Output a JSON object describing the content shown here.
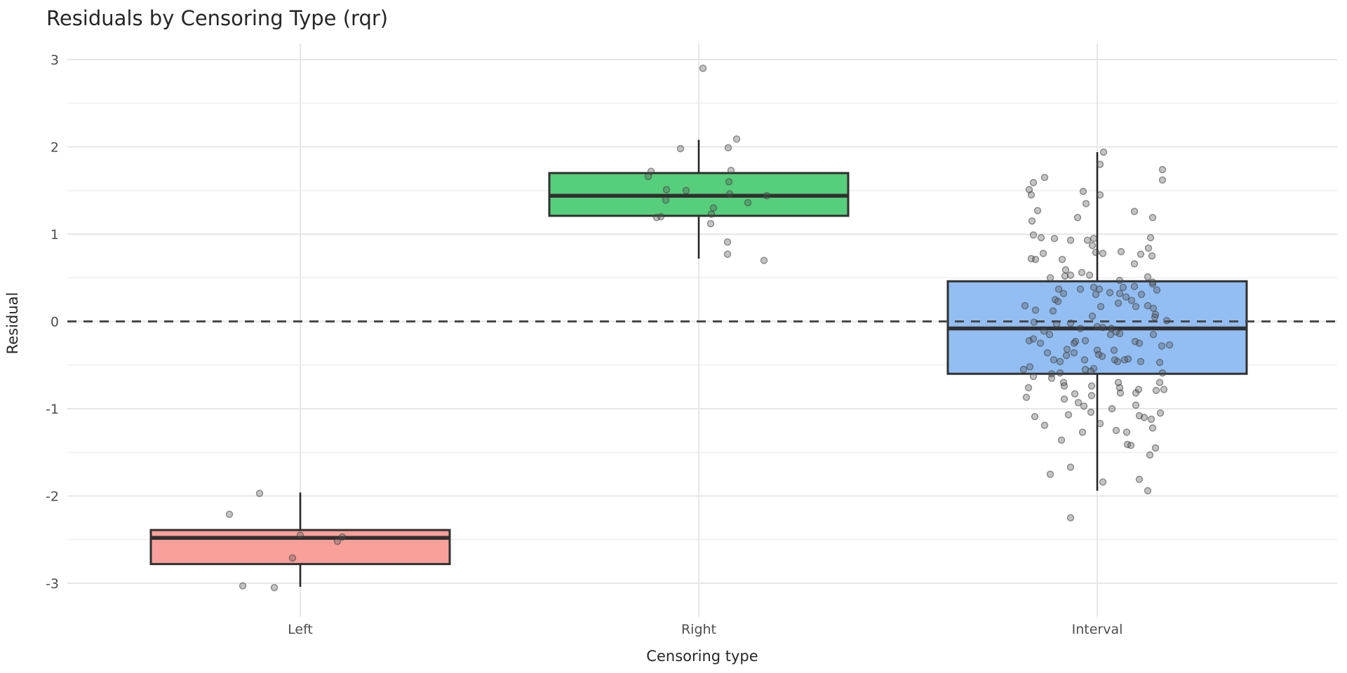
{
  "title": "Residuals by Censoring Type (rqr)",
  "x_axis": {
    "label": "Censoring type",
    "categories": [
      "Left",
      "Right",
      "Interval"
    ]
  },
  "y_axis": {
    "label": "Residual",
    "ticks": [
      3,
      2,
      1,
      0,
      -1,
      -2,
      -3
    ],
    "minor_ticks": [
      2.5,
      1.5,
      0.5,
      -0.5,
      -1.5,
      -2.5
    ],
    "range": [
      -3.37,
      3.19
    ]
  },
  "reference_line": {
    "y": 0,
    "style": "dashed"
  },
  "style": {
    "background": "#ffffff",
    "grid_major": "#e7e7e7",
    "grid_minor": "#f2f2f2",
    "box_border": "#303030",
    "whisker": "#262626",
    "reference_line_color": "#4a4a4a",
    "point_fill": "#555555",
    "point_stroke": "#3d3d3d",
    "point_opacity": 0.35,
    "text_dark": "#262626",
    "text_gray": "#4d4d4d"
  },
  "chart_data": {
    "type": "boxplot_jitter",
    "title": "Residuals by Censoring Type (rqr)",
    "xlabel": "Censoring type",
    "ylabel": "Residual",
    "ylim": [
      -3.37,
      3.19
    ],
    "groups": [
      {
        "label": "Left",
        "fill": "#F9A09A",
        "stats": {
          "whisker_low": -3.04,
          "q1": -2.78,
          "median": -2.48,
          "q3": -2.39,
          "whisker_high": -1.96
        },
        "points": [
          [
            370,
            -1.97
          ],
          [
            327,
            -2.21
          ],
          [
            428,
            -2.45
          ],
          [
            488,
            -2.47
          ],
          [
            481,
            -2.52
          ],
          [
            417,
            -2.71
          ],
          [
            346,
            -3.03
          ],
          [
            391,
            -3.05
          ]
        ]
      },
      {
        "label": "Right",
        "fill": "#57CE7B",
        "stats": {
          "whisker_low": 0.72,
          "q1": 1.21,
          "median": 1.44,
          "q3": 1.7,
          "whisker_high": 2.08
        },
        "points": [
          [
            1002,
            2.9
          ],
          [
            1050,
            2.09
          ],
          [
            970,
            1.98
          ],
          [
            1038,
            1.99
          ],
          [
            928,
            1.72
          ],
          [
            924,
            1.66
          ],
          [
            1042,
            1.73
          ],
          [
            1039,
            1.6
          ],
          [
            950,
            1.51
          ],
          [
            978,
            1.5
          ],
          [
            1040,
            1.46
          ],
          [
            1093,
            1.44
          ],
          [
            949,
            1.39
          ],
          [
            1066,
            1.36
          ],
          [
            1017,
            1.3
          ],
          [
            1014,
            1.23
          ],
          [
            936,
            1.19
          ],
          [
            942,
            1.2
          ],
          [
            1013,
            1.12
          ],
          [
            1037,
            0.91
          ],
          [
            1037,
            0.77
          ],
          [
            1089,
            0.7
          ]
        ]
      },
      {
        "label": "Interval",
        "fill": "#92BEF3",
        "stats": {
          "whisker_low": -1.94,
          "q1": -0.6,
          "median": -0.08,
          "q3": 0.46,
          "whisker_high": 1.94
        },
        "points": [
          [
            1573,
            1.94
          ],
          [
            1568,
            1.8
          ],
          [
            1657,
            1.74
          ],
          [
            1489,
            1.65
          ],
          [
            1473,
            1.59
          ],
          [
            1657,
            1.62
          ],
          [
            1467,
            1.51
          ],
          [
            1470,
            1.45
          ],
          [
            1544,
            1.49
          ],
          [
            1568,
            1.45
          ],
          [
            1548,
            1.35
          ],
          [
            1479,
            1.27
          ],
          [
            1617,
            1.26
          ],
          [
            1536,
            1.19
          ],
          [
            1643,
            1.19
          ],
          [
            1471,
            1.15
          ],
          [
            1473,
            0.99
          ],
          [
            1484,
            0.96
          ],
          [
            1503,
            0.95
          ],
          [
            1526,
            0.93
          ],
          [
            1550,
            0.93
          ],
          [
            1559,
            0.95
          ],
          [
            1557,
            0.87
          ],
          [
            1640,
            0.96
          ],
          [
            1637,
            0.84
          ],
          [
            1562,
            0.79
          ],
          [
            1572,
            0.78
          ],
          [
            1598,
            0.8
          ],
          [
            1626,
            0.77
          ],
          [
            1642,
            0.75
          ],
          [
            1487,
            0.78
          ],
          [
            1470,
            0.72
          ],
          [
            1476,
            0.71
          ],
          [
            1514,
            0.71
          ],
          [
            1617,
            0.66
          ],
          [
            1519,
            0.59
          ],
          [
            1542,
            0.56
          ],
          [
            1497,
            0.5
          ],
          [
            1518,
            0.52
          ],
          [
            1526,
            0.53
          ],
          [
            1553,
            0.53
          ],
          [
            1596,
            0.47
          ],
          [
            1636,
            0.51
          ],
          [
            1643,
            0.45
          ],
          [
            1509,
            0.37
          ],
          [
            1516,
            0.32
          ],
          [
            1540,
            0.37
          ],
          [
            1559,
            0.39
          ],
          [
            1567,
            0.37
          ],
          [
            1562,
            0.31
          ],
          [
            1582,
            0.33
          ],
          [
            1596,
            0.32
          ],
          [
            1601,
            0.39
          ],
          [
            1617,
            0.4
          ],
          [
            1643,
            0.43
          ],
          [
            1649,
            0.36
          ],
          [
            1627,
            0.31
          ],
          [
            1504,
            0.25
          ],
          [
            1508,
            0.23
          ],
          [
            1594,
            0.21
          ],
          [
            1605,
            0.28
          ],
          [
            1613,
            0.24
          ],
          [
            1619,
            0.17
          ],
          [
            1636,
            0.18
          ],
          [
            1644,
            0.15
          ],
          [
            1461,
            0.18
          ],
          [
            1476,
            0.13
          ],
          [
            1501,
            0.12
          ],
          [
            1557,
            0.06
          ],
          [
            1569,
            0.17
          ],
          [
            1474,
            -0.01
          ],
          [
            1506,
            -0.03
          ],
          [
            1526,
            -0.02
          ],
          [
            1540,
            -0.08
          ],
          [
            1564,
            -0.06
          ],
          [
            1572,
            -0.07
          ],
          [
            1584,
            -0.08
          ],
          [
            1591,
            -0.12
          ],
          [
            1583,
            -0.15
          ],
          [
            1596,
            -0.14
          ],
          [
            1646,
            0.05
          ],
          [
            1647,
            0.08
          ],
          [
            1663,
            0.01
          ],
          [
            1488,
            -0.11
          ],
          [
            1496,
            -0.15
          ],
          [
            1467,
            -0.22
          ],
          [
            1473,
            -0.2
          ],
          [
            1483,
            -0.25
          ],
          [
            1533,
            -0.23
          ],
          [
            1531,
            -0.25
          ],
          [
            1547,
            -0.22
          ],
          [
            1618,
            -0.23
          ],
          [
            1624,
            -0.25
          ],
          [
            1644,
            -0.15
          ],
          [
            1656,
            -0.28
          ],
          [
            1667,
            -0.27
          ],
          [
            1521,
            -0.32
          ],
          [
            1531,
            -0.36
          ],
          [
            1493,
            -0.36
          ],
          [
            1502,
            -0.44
          ],
          [
            1511,
            -0.46
          ],
          [
            1520,
            -0.39
          ],
          [
            1564,
            -0.33
          ],
          [
            1566,
            -0.38
          ],
          [
            1571,
            -0.4
          ],
          [
            1546,
            -0.44
          ],
          [
            1559,
            -0.54
          ],
          [
            1588,
            -0.33
          ],
          [
            1589,
            -0.44
          ],
          [
            1593,
            -0.46
          ],
          [
            1603,
            -0.44
          ],
          [
            1608,
            -0.43
          ],
          [
            1626,
            -0.46
          ],
          [
            1653,
            -0.47
          ],
          [
            1459,
            -0.55
          ],
          [
            1468,
            -0.52
          ],
          [
            1499,
            -0.6
          ],
          [
            1511,
            -0.59
          ],
          [
            1499,
            -0.65
          ],
          [
            1547,
            -0.55
          ],
          [
            1555,
            -0.57
          ],
          [
            1657,
            -0.59
          ],
          [
            1473,
            -0.63
          ],
          [
            1516,
            -0.7
          ],
          [
            1517,
            -0.74
          ],
          [
            1556,
            -0.74
          ],
          [
            1594,
            -0.7
          ],
          [
            1596,
            -0.76
          ],
          [
            1623,
            -0.78
          ],
          [
            1653,
            -0.7
          ],
          [
            1659,
            -0.78
          ],
          [
            1466,
            -0.76
          ],
          [
            1463,
            -0.87
          ],
          [
            1517,
            -0.89
          ],
          [
            1532,
            -0.83
          ],
          [
            1537,
            -0.93
          ],
          [
            1545,
            -0.97
          ],
          [
            1556,
            -0.85
          ],
          [
            1555,
            -1.04
          ],
          [
            1568,
            -1.17
          ],
          [
            1585,
            -1.0
          ],
          [
            1597,
            -0.82
          ],
          [
            1619,
            -0.96
          ],
          [
            1619,
            -0.82
          ],
          [
            1624,
            -1.08
          ],
          [
            1631,
            -1.1
          ],
          [
            1641,
            -1.12
          ],
          [
            1643,
            -1.22
          ],
          [
            1648,
            -0.79
          ],
          [
            1654,
            -1.05
          ],
          [
            1591,
            -1.25
          ],
          [
            1606,
            -1.27
          ],
          [
            1607,
            -1.41
          ],
          [
            1612,
            -1.42
          ],
          [
            1647,
            -1.45
          ],
          [
            1639,
            -1.53
          ],
          [
            1475,
            -1.09
          ],
          [
            1489,
            -1.19
          ],
          [
            1513,
            -1.36
          ],
          [
            1523,
            -1.07
          ],
          [
            1543,
            -1.27
          ],
          [
            1526,
            -1.67
          ],
          [
            1497,
            -1.75
          ],
          [
            1572,
            -1.84
          ],
          [
            1624,
            -1.81
          ],
          [
            1636,
            -1.94
          ],
          [
            1526,
            -2.25
          ]
        ]
      }
    ]
  }
}
